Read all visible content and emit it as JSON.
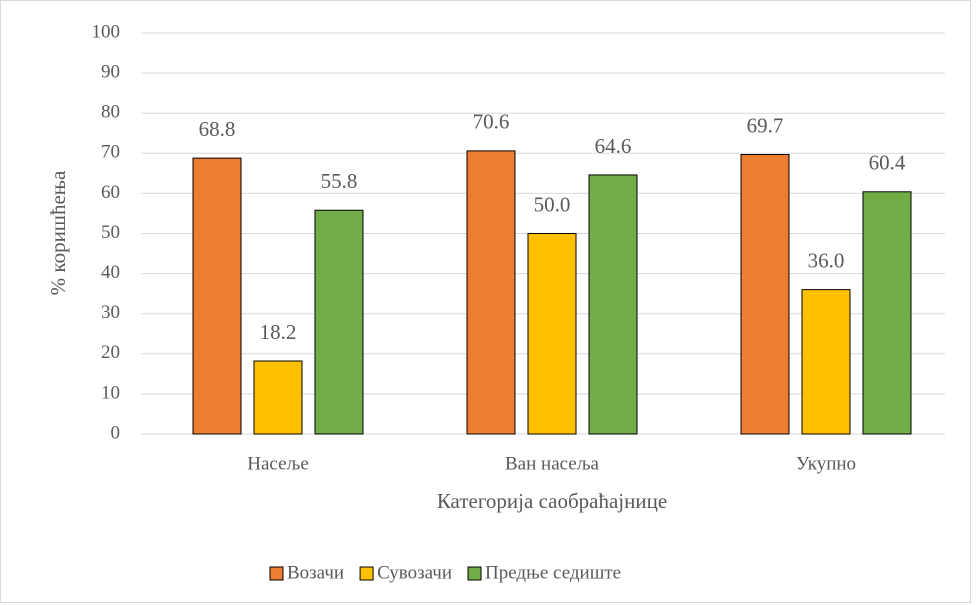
{
  "chart_data": {
    "type": "bar",
    "categories": [
      "Насеље",
      "Ван насеља",
      "Укупно"
    ],
    "series": [
      {
        "name": "Возачи",
        "color": "#ed7d31",
        "values": [
          68.8,
          70.6,
          69.7
        ],
        "value_labels": [
          "68.8",
          "70.6",
          "69.7"
        ]
      },
      {
        "name": "Сувозачи",
        "color": "#ffc000",
        "values": [
          18.2,
          50.0,
          36.0
        ],
        "value_labels": [
          "18.2",
          "50.0",
          "36.0"
        ]
      },
      {
        "name": "Предње седиште",
        "color": "#70ad47",
        "values": [
          55.8,
          64.6,
          60.4
        ],
        "value_labels": [
          "55.8",
          "64.6",
          "60.4"
        ]
      }
    ],
    "ylabel": "% коришћења",
    "xlabel": "Категорија саобраћајнице",
    "ylim": [
      0,
      100
    ],
    "yticks": [
      0,
      10,
      20,
      30,
      40,
      50,
      60,
      70,
      80,
      90,
      100
    ],
    "grid": true,
    "legend": "bottom"
  }
}
